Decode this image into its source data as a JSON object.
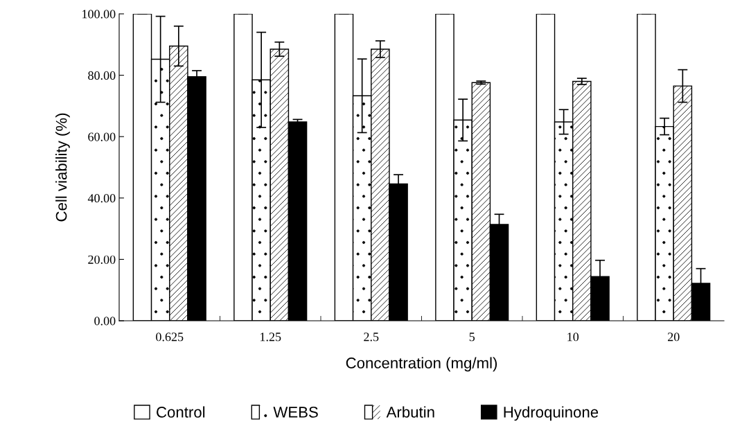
{
  "chart_data": {
    "type": "bar",
    "xlabel": "Concentration (mg/ml)",
    "ylabel": "Cell viability (%)",
    "categories": [
      "0.625",
      "1.25",
      "2.5",
      "5",
      "10",
      "20"
    ],
    "series": [
      {
        "name": "Control",
        "color": "#ffffff",
        "values": [
          100,
          100,
          100,
          100,
          100,
          100
        ],
        "errors": [
          0,
          0,
          0,
          0,
          0,
          0
        ]
      },
      {
        "name": "WEBS",
        "color": "#ffffff",
        "values": [
          85.2,
          78.5,
          73.3,
          65.4,
          64.8,
          63.3
        ],
        "errors": [
          14,
          15.5,
          12,
          6.8,
          4,
          2.7
        ]
      },
      {
        "name": "Arbutin",
        "color": "#ffffff",
        "values": [
          89.5,
          88.5,
          88.5,
          77.6,
          78,
          76.5
        ],
        "errors": [
          6.5,
          2.3,
          2.7,
          0.5,
          1,
          5.3
        ]
      },
      {
        "name": "Hydroquinone",
        "color": "#000000",
        "values": [
          79.5,
          64.8,
          44.6,
          31.4,
          14.4,
          12.2
        ],
        "errors": [
          2,
          0.8,
          3,
          3.3,
          5.3,
          4.8
        ]
      }
    ],
    "ylim": [
      0,
      100
    ],
    "yticks": [
      {
        "value": 0,
        "label": "0.00"
      },
      {
        "value": 20,
        "label": "20.00"
      },
      {
        "value": 40,
        "label": "40.00"
      },
      {
        "value": 60,
        "label": "60.00"
      },
      {
        "value": 80,
        "label": "80.00"
      },
      {
        "value": 100,
        "label": "100.00"
      }
    ],
    "legend": "bottom",
    "grid": false
  }
}
